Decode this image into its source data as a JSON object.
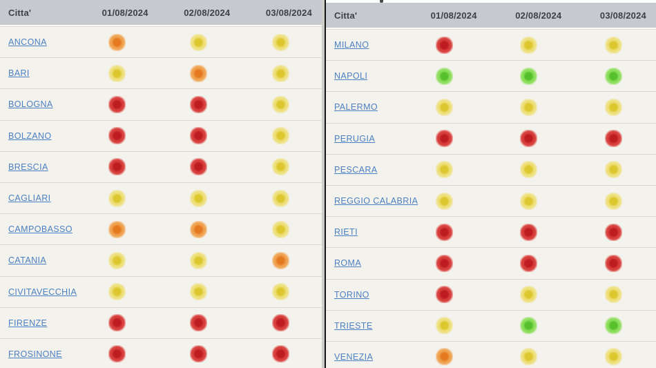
{
  "header": {
    "city_column": "Citta'",
    "date_columns": [
      "01/08/2024",
      "02/08/2024",
      "03/08/2024"
    ]
  },
  "status_colors": {
    "green": {
      "inner": "#55c02b",
      "outer": "#8edf5e"
    },
    "yellow": {
      "inner": "#ddc72e",
      "outer": "#eee07d"
    },
    "orange": {
      "inner": "#e5791f",
      "outer": "#f0a351"
    },
    "red": {
      "inner": "#bd1c21",
      "outer": "#d8403d"
    }
  },
  "tables": [
    {
      "side": "left",
      "rows": [
        {
          "city": "ANCONA",
          "levels": [
            "orange",
            "yellow",
            "yellow"
          ]
        },
        {
          "city": "BARI",
          "levels": [
            "yellow",
            "orange",
            "yellow"
          ]
        },
        {
          "city": "BOLOGNA",
          "levels": [
            "red",
            "red",
            "yellow"
          ]
        },
        {
          "city": "BOLZANO",
          "levels": [
            "red",
            "red",
            "yellow"
          ]
        },
        {
          "city": "BRESCIA",
          "levels": [
            "red",
            "red",
            "yellow"
          ]
        },
        {
          "city": "CAGLIARI",
          "levels": [
            "yellow",
            "yellow",
            "yellow"
          ]
        },
        {
          "city": "CAMPOBASSO",
          "levels": [
            "orange",
            "orange",
            "yellow"
          ]
        },
        {
          "city": "CATANIA",
          "levels": [
            "yellow",
            "yellow",
            "orange"
          ]
        },
        {
          "city": "CIVITAVECCHIA",
          "levels": [
            "yellow",
            "yellow",
            "yellow"
          ]
        },
        {
          "city": "FIRENZE",
          "levels": [
            "red",
            "red",
            "red"
          ]
        },
        {
          "city": "FROSINONE",
          "levels": [
            "red",
            "red",
            "red"
          ]
        }
      ]
    },
    {
      "side": "right",
      "rows": [
        {
          "city": "MILANO",
          "levels": [
            "red",
            "yellow",
            "yellow"
          ]
        },
        {
          "city": "NAPOLI",
          "levels": [
            "green",
            "green",
            "green"
          ]
        },
        {
          "city": "PALERMO",
          "levels": [
            "yellow",
            "yellow",
            "yellow"
          ]
        },
        {
          "city": "PERUGIA",
          "levels": [
            "red",
            "red",
            "red"
          ]
        },
        {
          "city": "PESCARA",
          "levels": [
            "yellow",
            "yellow",
            "yellow"
          ]
        },
        {
          "city": "REGGIO CALABRIA",
          "levels": [
            "yellow",
            "yellow",
            "yellow"
          ]
        },
        {
          "city": "RIETI",
          "levels": [
            "red",
            "red",
            "red"
          ]
        },
        {
          "city": "ROMA",
          "levels": [
            "red",
            "red",
            "red"
          ]
        },
        {
          "city": "TORINO",
          "levels": [
            "red",
            "yellow",
            "yellow"
          ]
        },
        {
          "city": "TRIESTE",
          "levels": [
            "yellow",
            "green",
            "green"
          ]
        },
        {
          "city": "VENEZIA",
          "levels": [
            "orange",
            "yellow",
            "yellow"
          ]
        }
      ]
    }
  ]
}
